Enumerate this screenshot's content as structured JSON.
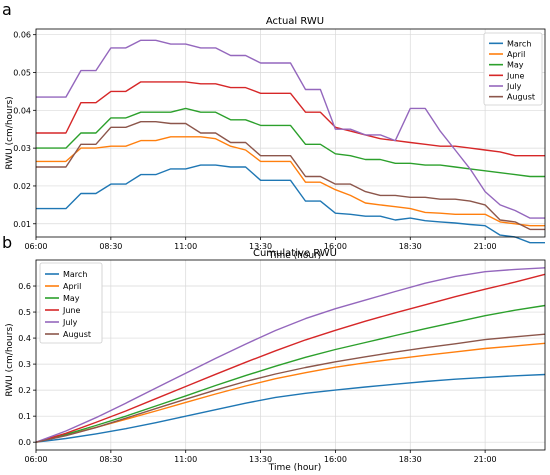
{
  "panels": [
    {
      "letter": "a",
      "chart_data": {
        "type": "line",
        "title": "Actual RWU",
        "xlabel": "Time (hour)",
        "ylabel": "RWU (cm/hours)",
        "xticks": [
          "06:00",
          "08:30",
          "11:00",
          "13:30",
          "16:00",
          "18:30",
          "21:00"
        ],
        "yticks": [
          "0.01",
          "0.02",
          "0.03",
          "0.04",
          "0.05",
          "0.06"
        ],
        "xlim": [
          6.0,
          23.0
        ],
        "ylim": [
          0.0065,
          0.0615
        ],
        "grid": true,
        "legend_position": "top-right",
        "series": [
          {
            "name": "March",
            "color": "#1f77b4",
            "x": [
              6,
              7,
              7.5,
              8,
              8.5,
              9,
              9.5,
              10,
              10.5,
              11,
              11.5,
              12,
              12.5,
              13,
              13.5,
              14,
              14.5,
              15,
              15.5,
              16,
              16.5,
              17,
              17.5,
              18,
              18.5,
              19,
              19.5,
              20,
              20.5,
              21,
              21.5,
              22,
              22.5,
              23
            ],
            "y": [
              0.014,
              0.014,
              0.018,
              0.018,
              0.0205,
              0.0205,
              0.023,
              0.023,
              0.0245,
              0.0245,
              0.0255,
              0.0255,
              0.025,
              0.025,
              0.0215,
              0.0215,
              0.0215,
              0.016,
              0.016,
              0.0128,
              0.0125,
              0.012,
              0.012,
              0.011,
              0.0115,
              0.0108,
              0.0105,
              0.0102,
              0.0098,
              0.0095,
              0.007,
              0.0065,
              0.005,
              0.005
            ]
          },
          {
            "name": "April",
            "color": "#ff7f0e",
            "x": [
              6,
              7,
              7.5,
              8,
              8.5,
              9,
              9.5,
              10,
              10.5,
              11,
              11.5,
              12,
              12.5,
              13,
              13.5,
              14,
              14.5,
              15,
              15.5,
              16,
              16.5,
              17,
              17.5,
              18,
              18.5,
              19,
              19.5,
              20,
              20.5,
              21,
              21.5,
              22,
              22.5,
              23
            ],
            "y": [
              0.0265,
              0.0265,
              0.03,
              0.03,
              0.0305,
              0.0305,
              0.032,
              0.032,
              0.033,
              0.033,
              0.033,
              0.0325,
              0.0305,
              0.0295,
              0.0265,
              0.0265,
              0.0265,
              0.021,
              0.021,
              0.019,
              0.0175,
              0.0155,
              0.015,
              0.0145,
              0.014,
              0.013,
              0.0128,
              0.0125,
              0.0125,
              0.0125,
              0.0105,
              0.01,
              0.0095,
              0.0095
            ]
          },
          {
            "name": "May",
            "color": "#2ca02c",
            "x": [
              6,
              7,
              7.5,
              8,
              8.5,
              9,
              9.5,
              10,
              10.5,
              11,
              11.5,
              12,
              12.5,
              13,
              13.5,
              14,
              14.5,
              15,
              15.5,
              16,
              16.5,
              17,
              17.5,
              18,
              18.5,
              19,
              19.5,
              20,
              20.5,
              21,
              21.5,
              22,
              22.5,
              23
            ],
            "y": [
              0.03,
              0.03,
              0.034,
              0.034,
              0.038,
              0.038,
              0.0395,
              0.0395,
              0.0395,
              0.0405,
              0.0395,
              0.0395,
              0.0375,
              0.0375,
              0.036,
              0.036,
              0.036,
              0.031,
              0.031,
              0.0285,
              0.028,
              0.027,
              0.027,
              0.026,
              0.026,
              0.0255,
              0.0255,
              0.025,
              0.0245,
              0.024,
              0.0235,
              0.023,
              0.0225,
              0.0225
            ]
          },
          {
            "name": "June",
            "color": "#d62728",
            "x": [
              6,
              7,
              7.5,
              8,
              8.5,
              9,
              9.5,
              10,
              10.5,
              11,
              11.5,
              12,
              12.5,
              13,
              13.5,
              14,
              14.5,
              15,
              15.5,
              16,
              16.5,
              17,
              17.5,
              18,
              18.5,
              19,
              19.5,
              20,
              20.5,
              21,
              21.5,
              22,
              22.5,
              23
            ],
            "y": [
              0.034,
              0.034,
              0.042,
              0.042,
              0.045,
              0.045,
              0.0475,
              0.0475,
              0.0475,
              0.0475,
              0.047,
              0.047,
              0.046,
              0.046,
              0.0445,
              0.0445,
              0.0445,
              0.0395,
              0.0395,
              0.0355,
              0.0345,
              0.0335,
              0.0325,
              0.032,
              0.0315,
              0.031,
              0.0305,
              0.0305,
              0.03,
              0.0295,
              0.029,
              0.028,
              0.028,
              0.028
            ]
          },
          {
            "name": "July",
            "color": "#9467bd",
            "x": [
              6,
              7,
              7.5,
              8,
              8.5,
              9,
              9.5,
              10,
              10.5,
              11,
              11.5,
              12,
              12.5,
              13,
              13.5,
              14,
              14.5,
              15,
              15.5,
              16,
              16.5,
              17,
              17.5,
              18,
              18.5,
              19,
              19.5,
              20,
              20.5,
              21,
              21.5,
              22,
              22.5,
              23
            ],
            "y": [
              0.0435,
              0.0435,
              0.0505,
              0.0505,
              0.0565,
              0.0565,
              0.0585,
              0.0585,
              0.0575,
              0.0575,
              0.0565,
              0.0565,
              0.0545,
              0.0545,
              0.0525,
              0.0525,
              0.0525,
              0.0455,
              0.0455,
              0.035,
              0.035,
              0.0335,
              0.0335,
              0.032,
              0.0405,
              0.0405,
              0.0345,
              0.0295,
              0.0245,
              0.0185,
              0.015,
              0.0135,
              0.0115,
              0.0115
            ]
          },
          {
            "name": "August",
            "color": "#8c564b",
            "x": [
              6,
              7,
              7.5,
              8,
              8.5,
              9,
              9.5,
              10,
              10.5,
              11,
              11.5,
              12,
              12.5,
              13,
              13.5,
              14,
              14.5,
              15,
              15.5,
              16,
              16.5,
              17,
              17.5,
              18,
              18.5,
              19,
              19.5,
              20,
              20.5,
              21,
              21.5,
              22,
              22.5,
              23
            ],
            "y": [
              0.025,
              0.025,
              0.031,
              0.031,
              0.0355,
              0.0355,
              0.037,
              0.037,
              0.0365,
              0.0365,
              0.034,
              0.034,
              0.0315,
              0.0315,
              0.028,
              0.028,
              0.028,
              0.0225,
              0.0225,
              0.0205,
              0.0205,
              0.0185,
              0.0175,
              0.0175,
              0.017,
              0.017,
              0.0165,
              0.0165,
              0.016,
              0.015,
              0.011,
              0.0105,
              0.0085,
              0.0085
            ]
          }
        ]
      }
    },
    {
      "letter": "b",
      "chart_data": {
        "type": "line",
        "title": "Cumulative RWU",
        "xlabel": "Time (hour)",
        "ylabel": "RWU (cm/hours)",
        "xticks": [
          "06:00",
          "08:30",
          "11:00",
          "13:30",
          "16:00",
          "18:30",
          "21:00"
        ],
        "yticks": [
          "0.0",
          "0.1",
          "0.2",
          "0.3",
          "0.4",
          "0.5",
          "0.6"
        ],
        "xlim": [
          6.0,
          23.0
        ],
        "ylim": [
          -0.03,
          0.7
        ],
        "grid": true,
        "legend_position": "top-left",
        "series": [
          {
            "name": "March",
            "color": "#1f77b4",
            "x": [
              6,
              7,
              8,
              9,
              10,
              11,
              12,
              13,
              14,
              15,
              16,
              17,
              18,
              19,
              20,
              21,
              22,
              23
            ],
            "y": [
              0.0,
              0.014,
              0.032,
              0.052,
              0.075,
              0.1,
              0.125,
              0.15,
              0.172,
              0.188,
              0.2,
              0.212,
              0.223,
              0.233,
              0.242,
              0.249,
              0.255,
              0.26
            ]
          },
          {
            "name": "April",
            "color": "#ff7f0e",
            "x": [
              6,
              7,
              8,
              9,
              10,
              11,
              12,
              13,
              14,
              15,
              16,
              17,
              18,
              19,
              20,
              21,
              22,
              23
            ],
            "y": [
              0.0,
              0.027,
              0.057,
              0.088,
              0.12,
              0.153,
              0.185,
              0.216,
              0.244,
              0.267,
              0.288,
              0.305,
              0.32,
              0.334,
              0.347,
              0.36,
              0.37,
              0.38
            ]
          },
          {
            "name": "May",
            "color": "#2ca02c",
            "x": [
              6,
              7,
              8,
              9,
              10,
              11,
              12,
              13,
              14,
              15,
              16,
              17,
              18,
              19,
              20,
              21,
              22,
              23
            ],
            "y": [
              0.0,
              0.03,
              0.064,
              0.1,
              0.139,
              0.178,
              0.218,
              0.256,
              0.292,
              0.326,
              0.356,
              0.383,
              0.41,
              0.436,
              0.461,
              0.486,
              0.507,
              0.525
            ]
          },
          {
            "name": "June",
            "color": "#d62728",
            "x": [
              6,
              7,
              8,
              9,
              10,
              11,
              12,
              13,
              14,
              15,
              16,
              17,
              18,
              19,
              20,
              21,
              22,
              23
            ],
            "y": [
              0.0,
              0.034,
              0.076,
              0.12,
              0.167,
              0.214,
              0.261,
              0.307,
              0.351,
              0.393,
              0.43,
              0.465,
              0.497,
              0.528,
              0.559,
              0.588,
              0.615,
              0.645
            ]
          },
          {
            "name": "July",
            "color": "#9467bd",
            "x": [
              6,
              7,
              8,
              9,
              10,
              11,
              12,
              13,
              14,
              15,
              16,
              17,
              18,
              19,
              20,
              21,
              22,
              23
            ],
            "y": [
              0.0,
              0.043,
              0.094,
              0.15,
              0.208,
              0.265,
              0.322,
              0.377,
              0.429,
              0.475,
              0.513,
              0.546,
              0.579,
              0.611,
              0.637,
              0.655,
              0.664,
              0.67
            ]
          },
          {
            "name": "August",
            "color": "#8c564b",
            "x": [
              6,
              7,
              8,
              9,
              10,
              11,
              12,
              13,
              14,
              15,
              16,
              17,
              18,
              19,
              20,
              21,
              22,
              23
            ],
            "y": [
              0.0,
              0.025,
              0.056,
              0.092,
              0.129,
              0.165,
              0.2,
              0.233,
              0.262,
              0.287,
              0.309,
              0.328,
              0.346,
              0.363,
              0.378,
              0.394,
              0.405,
              0.415
            ]
          }
        ]
      }
    }
  ]
}
